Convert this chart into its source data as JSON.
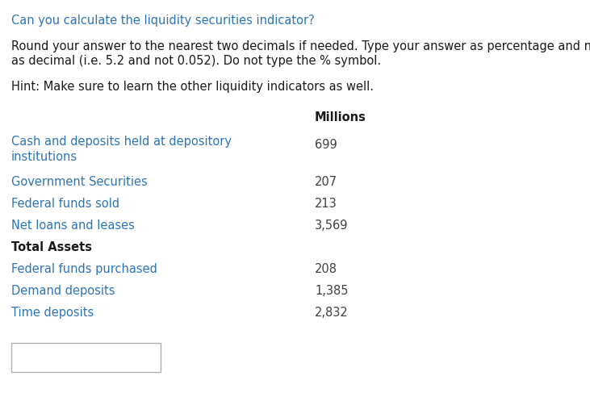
{
  "title_line": "Can you calculate the liquidity securities indicator?",
  "title_color": "#2E75B6",
  "body_text_1a": "Round your answer to the nearest two decimals if needed. Type your answer as percentage and not",
  "body_text_1b": "as decimal (i.e. 5.2 and not 0.052). Do not type the % symbol.",
  "body_text_2": "Hint: Make sure to learn the other liquidity indicators as well.",
  "col_header": "Millions",
  "rows": [
    {
      "label": "Cash and deposits held at depository",
      "label2": "institutions",
      "value": "699",
      "label_color": "#2E75B6",
      "value_color": "#404040",
      "bold": false,
      "two_line": true
    },
    {
      "label": "Government Securities",
      "label2": "",
      "value": "207",
      "label_color": "#2E75B6",
      "value_color": "#404040",
      "bold": false,
      "two_line": false
    },
    {
      "label": "Federal funds sold",
      "label2": "",
      "value": "213",
      "label_color": "#2E75B6",
      "value_color": "#404040",
      "bold": false,
      "two_line": false
    },
    {
      "label": "Net loans and leases",
      "label2": "",
      "value": "3,569",
      "label_color": "#2E75B6",
      "value_color": "#404040",
      "bold": false,
      "two_line": false
    },
    {
      "label": "Total Assets",
      "label2": "",
      "value": "",
      "label_color": "#1a1a1a",
      "value_color": "#404040",
      "bold": true,
      "two_line": false
    },
    {
      "label": "Federal funds purchased",
      "label2": "",
      "value": "208",
      "label_color": "#2E75B6",
      "value_color": "#404040",
      "bold": false,
      "two_line": false
    },
    {
      "label": "Demand deposits",
      "label2": "",
      "value": "1,385",
      "label_color": "#2E75B6",
      "value_color": "#404040",
      "bold": false,
      "two_line": false
    },
    {
      "label": "Time deposits",
      "label2": "",
      "value": "2,832",
      "label_color": "#2E75B6",
      "value_color": "#404040",
      "bold": false,
      "two_line": false
    }
  ],
  "background_color": "#ffffff",
  "text_color_dark": "#1a1a1a",
  "fig_width": 7.31,
  "fig_height": 5.13,
  "dpi": 100
}
